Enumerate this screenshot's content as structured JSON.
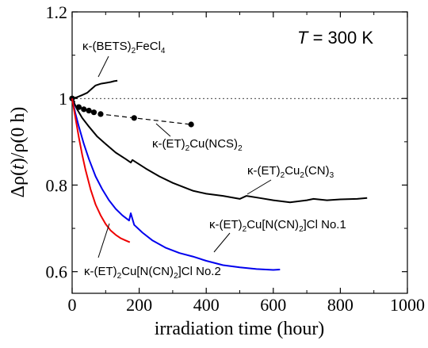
{
  "chart_data": {
    "type": "line",
    "xlabel": "irradiation time (hour)",
    "ylabel": "Δρ(t)/ρ(0 h)",
    "xlim": [
      0,
      1000
    ],
    "ylim": [
      0.55,
      1.2
    ],
    "xticks": [
      0,
      200,
      400,
      600,
      800,
      1000
    ],
    "yticks": [
      0.6,
      0.8,
      1,
      1.2
    ],
    "xtick_labels": [
      "0",
      "200",
      "400",
      "600",
      "800",
      "1000"
    ],
    "ytick_labels": [
      "0.6",
      "0.8",
      "1",
      "1.2"
    ],
    "reference_line": 1.0,
    "temperature_label": "T = 300 K",
    "series": [
      {
        "name": "κ-(BETS)2FeCl4",
        "color": "#000000",
        "style": "solid",
        "x": [
          0,
          15,
          30,
          45,
          55,
          70,
          85,
          100,
          115,
          125,
          135
        ],
        "y": [
          1.0,
          1.003,
          1.008,
          1.013,
          1.02,
          1.03,
          1.034,
          1.036,
          1.038,
          1.04,
          1.041
        ]
      },
      {
        "name": "κ-(ET)2Cu(NCS)2",
        "color": "#000000",
        "style": "dashed-markers",
        "x": [
          0,
          20,
          35,
          50,
          65,
          85,
          185,
          355
        ],
        "y": [
          1.0,
          0.98,
          0.975,
          0.972,
          0.968,
          0.964,
          0.955,
          0.94
        ]
      },
      {
        "name": "κ-(ET)2Cu2(CN)3",
        "color": "#000000",
        "style": "solid",
        "x": [
          0,
          15,
          30,
          50,
          75,
          100,
          130,
          160,
          175,
          180,
          220,
          260,
          300,
          350,
          360,
          400,
          450,
          500,
          520,
          560,
          600,
          650,
          700,
          720,
          760,
          800,
          850,
          880
        ],
        "y": [
          1.0,
          0.975,
          0.955,
          0.935,
          0.912,
          0.895,
          0.875,
          0.86,
          0.852,
          0.858,
          0.838,
          0.82,
          0.805,
          0.79,
          0.787,
          0.78,
          0.775,
          0.768,
          0.775,
          0.77,
          0.765,
          0.76,
          0.765,
          0.768,
          0.765,
          0.767,
          0.768,
          0.77
        ]
      },
      {
        "name": "κ-(ET)2Cu[N(CN)2]Cl No.1",
        "color": "#0000ee",
        "style": "solid",
        "x": [
          0,
          10,
          20,
          35,
          50,
          70,
          90,
          110,
          130,
          150,
          170,
          175,
          185,
          210,
          240,
          280,
          320,
          360,
          400,
          450,
          500,
          550,
          600,
          620
        ],
        "y": [
          1.0,
          0.965,
          0.935,
          0.895,
          0.86,
          0.82,
          0.79,
          0.765,
          0.745,
          0.73,
          0.718,
          0.735,
          0.708,
          0.69,
          0.672,
          0.655,
          0.643,
          0.635,
          0.625,
          0.615,
          0.61,
          0.606,
          0.604,
          0.605
        ]
      },
      {
        "name": "κ-(ET)2Cu[N(CN)2]Cl No.2",
        "color": "#ee0000",
        "style": "solid",
        "x": [
          0,
          10,
          20,
          30,
          40,
          55,
          70,
          85,
          100,
          115,
          130,
          145,
          160,
          172
        ],
        "y": [
          1.0,
          0.955,
          0.91,
          0.87,
          0.835,
          0.79,
          0.755,
          0.73,
          0.71,
          0.695,
          0.685,
          0.677,
          0.672,
          0.668
        ]
      }
    ]
  },
  "annotations": {
    "bets": {
      "prefix": "κ-(BETS)",
      "sub1": "2",
      "mid": "FeCl",
      "sub2": "4"
    },
    "ncs": {
      "prefix": "κ-(ET)",
      "sub1": "2",
      "mid": "Cu(NCS)",
      "sub2": "2"
    },
    "cn3": {
      "prefix": "κ-(ET)",
      "sub1": "2",
      "mid": "Cu",
      "sub2": "2",
      "tail": "(CN)",
      "sub3": "3"
    },
    "cl1": {
      "prefix": "κ-(ET)",
      "sub1": "2",
      "mid": "Cu[N(CN)",
      "sub2": "2",
      "tail": "]Cl  No.1"
    },
    "cl2": {
      "prefix": "κ-(ET)",
      "sub1": "2",
      "mid": "Cu[N(CN)",
      "sub2": "2",
      "tail": "]Cl No.2"
    }
  },
  "temperature": {
    "italic": "T",
    "rest": " = 300 K"
  }
}
